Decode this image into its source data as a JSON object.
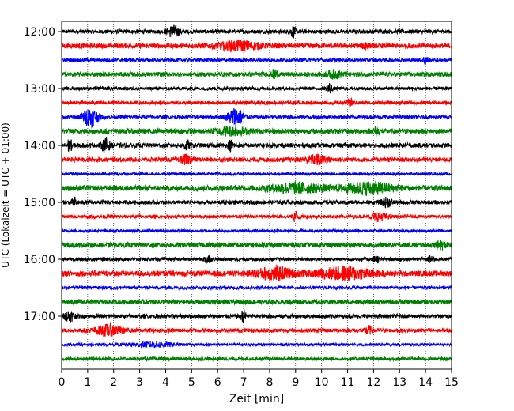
{
  "chart_data": {
    "type": "line",
    "title": "",
    "xlabel": "Zeit  [min]",
    "ylabel": "UTC (Lokalzeit = UTC + 01:00)",
    "xlim": [
      0,
      15
    ],
    "x_ticks": [
      "0",
      "1",
      "2",
      "3",
      "4",
      "5",
      "6",
      "7",
      "8",
      "9",
      "10",
      "11",
      "12",
      "13",
      "14",
      "15"
    ],
    "y_tick_labels": [
      "12:00",
      "13:00",
      "14:00",
      "15:00",
      "16:00",
      "17:00"
    ],
    "grid": "vertical dotted",
    "trace_interval_min": 15,
    "colors_cycle": [
      "#000000",
      "#ff0000",
      "#0000ff",
      "#008000"
    ],
    "series": [
      {
        "start": "12:00",
        "color": "#000000",
        "amplitude": 0.18,
        "bursts": [
          {
            "t": 4.3,
            "amp": 0.55,
            "width": 0.2
          },
          {
            "t": 8.9,
            "amp": 0.45,
            "width": 0.1
          }
        ]
      },
      {
        "start": "12:15",
        "color": "#ff0000",
        "amplitude": 0.22,
        "bursts": [
          {
            "t": 6.8,
            "amp": 0.35,
            "width": 0.8
          },
          {
            "t": 11.7,
            "amp": 0.4,
            "width": 0.1
          }
        ]
      },
      {
        "start": "12:30",
        "color": "#0000ff",
        "amplitude": 0.15,
        "bursts": [
          {
            "t": 14.0,
            "amp": 0.35,
            "width": 0.1
          }
        ]
      },
      {
        "start": "12:45",
        "color": "#008000",
        "amplitude": 0.2,
        "bursts": [
          {
            "t": 8.2,
            "amp": 0.45,
            "width": 0.1
          },
          {
            "t": 10.5,
            "amp": 0.3,
            "width": 0.3
          }
        ]
      },
      {
        "start": "13:00",
        "color": "#000000",
        "amplitude": 0.15,
        "bursts": [
          {
            "t": 10.3,
            "amp": 0.45,
            "width": 0.1
          }
        ]
      },
      {
        "start": "13:15",
        "color": "#ff0000",
        "amplitude": 0.15,
        "bursts": [
          {
            "t": 11.1,
            "amp": 0.4,
            "width": 0.1
          }
        ]
      },
      {
        "start": "13:30",
        "color": "#0000ff",
        "amplitude": 0.15,
        "bursts": [
          {
            "t": 1.1,
            "amp": 0.8,
            "width": 0.3
          },
          {
            "t": 6.7,
            "amp": 0.8,
            "width": 0.3
          }
        ]
      },
      {
        "start": "13:45",
        "color": "#008000",
        "amplitude": 0.22,
        "bursts": [
          {
            "t": 6.5,
            "amp": 0.3,
            "width": 0.6
          },
          {
            "t": 12.1,
            "amp": 0.35,
            "width": 0.1
          }
        ]
      },
      {
        "start": "14:00",
        "color": "#000000",
        "amplitude": 0.2,
        "bursts": [
          {
            "t": 0.3,
            "amp": 0.55,
            "width": 0.1
          },
          {
            "t": 1.7,
            "amp": 0.6,
            "width": 0.15
          },
          {
            "t": 4.8,
            "amp": 0.5,
            "width": 0.1
          },
          {
            "t": 6.5,
            "amp": 0.4,
            "width": 0.1
          }
        ]
      },
      {
        "start": "14:15",
        "color": "#ff0000",
        "amplitude": 0.2,
        "bursts": [
          {
            "t": 4.8,
            "amp": 0.35,
            "width": 0.2
          },
          {
            "t": 9.8,
            "amp": 0.35,
            "width": 0.4
          }
        ]
      },
      {
        "start": "14:30",
        "color": "#0000ff",
        "amplitude": 0.12,
        "bursts": []
      },
      {
        "start": "14:45",
        "color": "#008000",
        "amplitude": 0.25,
        "bursts": [
          {
            "t": 9.0,
            "amp": 0.35,
            "width": 1.0
          },
          {
            "t": 11.8,
            "amp": 0.45,
            "width": 0.9
          }
        ]
      },
      {
        "start": "15:00",
        "color": "#000000",
        "amplitude": 0.18,
        "bursts": [
          {
            "t": 0.5,
            "amp": 0.4,
            "width": 0.1
          },
          {
            "t": 12.5,
            "amp": 0.35,
            "width": 0.2
          }
        ]
      },
      {
        "start": "15:15",
        "color": "#ff0000",
        "amplitude": 0.15,
        "bursts": [
          {
            "t": 9.0,
            "amp": 0.5,
            "width": 0.1
          },
          {
            "t": 12.2,
            "amp": 0.35,
            "width": 0.3
          }
        ]
      },
      {
        "start": "15:30",
        "color": "#0000ff",
        "amplitude": 0.12,
        "bursts": []
      },
      {
        "start": "15:45",
        "color": "#008000",
        "amplitude": 0.22,
        "bursts": [
          {
            "t": 14.6,
            "amp": 0.3,
            "width": 0.2
          }
        ]
      },
      {
        "start": "16:00",
        "color": "#000000",
        "amplitude": 0.15,
        "bursts": [
          {
            "t": 5.6,
            "amp": 0.5,
            "width": 0.1
          },
          {
            "t": 12.1,
            "amp": 0.35,
            "width": 0.1
          },
          {
            "t": 14.2,
            "amp": 0.35,
            "width": 0.1
          }
        ]
      },
      {
        "start": "16:15",
        "color": "#ff0000",
        "amplitude": 0.25,
        "bursts": [
          {
            "t": 8.2,
            "amp": 0.5,
            "width": 0.7
          },
          {
            "t": 10.9,
            "amp": 0.5,
            "width": 1.0
          }
        ]
      },
      {
        "start": "16:30",
        "color": "#0000ff",
        "amplitude": 0.15,
        "bursts": []
      },
      {
        "start": "16:45",
        "color": "#008000",
        "amplitude": 0.2,
        "bursts": []
      },
      {
        "start": "17:00",
        "color": "#000000",
        "amplitude": 0.18,
        "bursts": [
          {
            "t": 0.3,
            "amp": 0.4,
            "width": 0.2
          },
          {
            "t": 7.0,
            "amp": 0.5,
            "width": 0.1
          }
        ]
      },
      {
        "start": "17:15",
        "color": "#ff0000",
        "amplitude": 0.18,
        "bursts": [
          {
            "t": 1.8,
            "amp": 0.45,
            "width": 0.5
          },
          {
            "t": 11.8,
            "amp": 0.4,
            "width": 0.1
          }
        ]
      },
      {
        "start": "17:30",
        "color": "#0000ff",
        "amplitude": 0.12,
        "bursts": [
          {
            "t": 3.5,
            "amp": 0.2,
            "width": 0.8
          }
        ]
      },
      {
        "start": "17:45",
        "color": "#008000",
        "amplitude": 0.15,
        "bursts": []
      }
    ]
  }
}
